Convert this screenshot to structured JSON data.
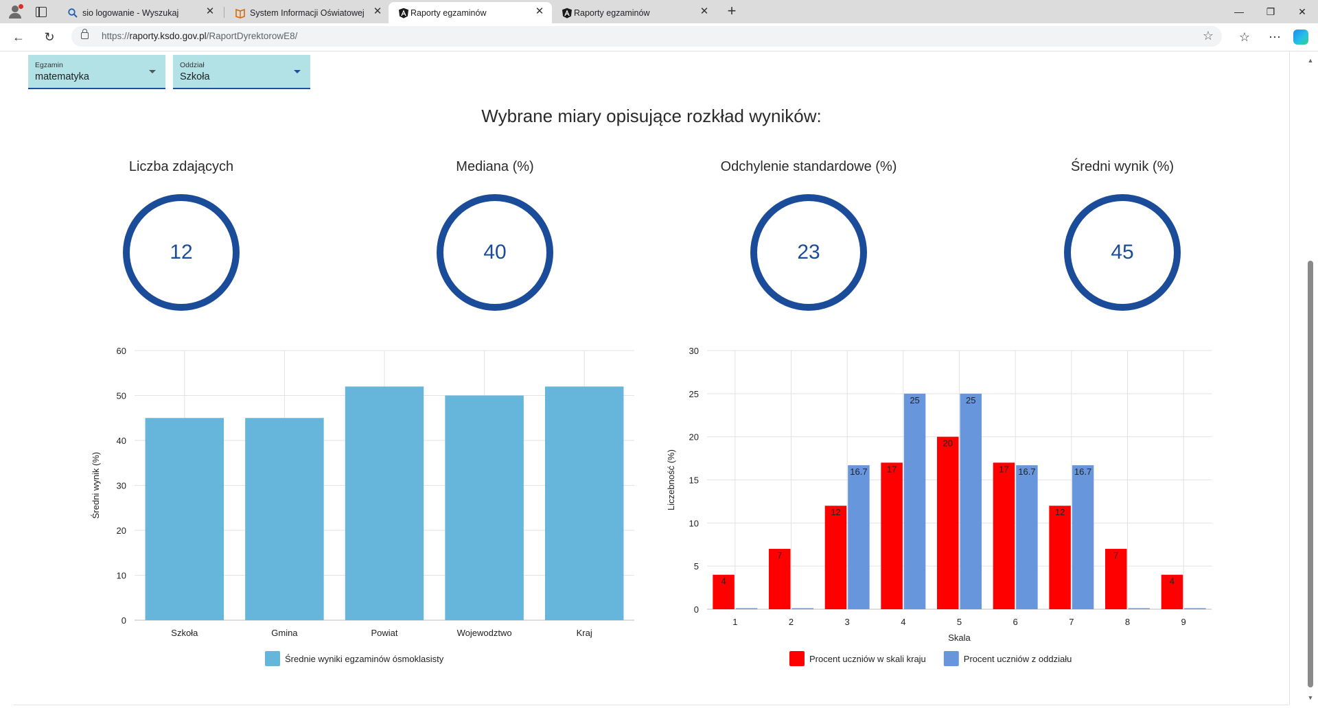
{
  "browser": {
    "tabs": [
      {
        "title": "sio logowanie - Wyszukaj",
        "icon": "search-favicon-icon",
        "active": false
      },
      {
        "title": "System Informacji Oświatowej",
        "icon": "book-favicon-icon",
        "active": false
      },
      {
        "title": "Raporty egzaminów",
        "icon": "angular-favicon-icon",
        "active": true
      },
      {
        "title": "Raporty egzaminów",
        "icon": "angular-favicon-icon",
        "active": false
      }
    ],
    "url_prefix": "https://",
    "url_host": "raporty.ksdo.gov.pl",
    "url_path": "/RaportDyrektorowE8/"
  },
  "filters": {
    "exam": {
      "label": "Egzamin",
      "value": "matematyka"
    },
    "division": {
      "label": "Oddział",
      "value": "Szkoła"
    }
  },
  "section_title": "Wybrane miary opisujące rozkład wyników:",
  "metrics": [
    {
      "label": "Liczba zdających",
      "value": "12"
    },
    {
      "label": "Mediana (%)",
      "value": "40"
    },
    {
      "label": "Odchylenie standardowe (%)",
      "value": "23"
    },
    {
      "label": "Średni wynik (%)",
      "value": "45"
    }
  ],
  "chart_data": [
    {
      "type": "bar",
      "categories": [
        "Szkoła",
        "Gmina",
        "Powiat",
        "Wojewodztwo",
        "Kraj"
      ],
      "series": [
        {
          "name": "Średnie wyniki egzaminów ósmoklasisty",
          "values": [
            45,
            45,
            52,
            50,
            52
          ],
          "color": "#66b6dc"
        }
      ],
      "xlabel": "",
      "ylabel": "Średni wynik (%)",
      "ylim": [
        0,
        60
      ],
      "yticks": [
        0,
        10,
        20,
        30,
        40,
        50,
        60
      ],
      "grid": true,
      "legend": "bottom"
    },
    {
      "type": "bar",
      "categories": [
        "1",
        "2",
        "3",
        "4",
        "5",
        "6",
        "7",
        "8",
        "9"
      ],
      "series": [
        {
          "name": "Procent uczniów w skali kraju",
          "values": [
            4,
            7,
            12,
            17,
            20,
            17,
            12,
            7,
            4
          ],
          "labels": [
            "4",
            "7",
            "12",
            "17",
            "20",
            "17",
            "12",
            "7",
            "4"
          ],
          "color": "#ff0000"
        },
        {
          "name": "Procent uczniów z oddziału",
          "values": [
            0,
            0,
            16.7,
            25,
            25,
            16.7,
            16.7,
            0,
            0
          ],
          "labels": [
            "",
            "",
            "16.7",
            "25",
            "25",
            "16.7",
            "16.7",
            "",
            ""
          ],
          "color": "#6896dc"
        }
      ],
      "xlabel": "Skala",
      "ylabel": "Liczebność (%)",
      "ylim": [
        0,
        30
      ],
      "yticks": [
        0,
        5,
        10,
        15,
        20,
        25,
        30
      ],
      "grid": true,
      "legend": "bottom"
    }
  ]
}
